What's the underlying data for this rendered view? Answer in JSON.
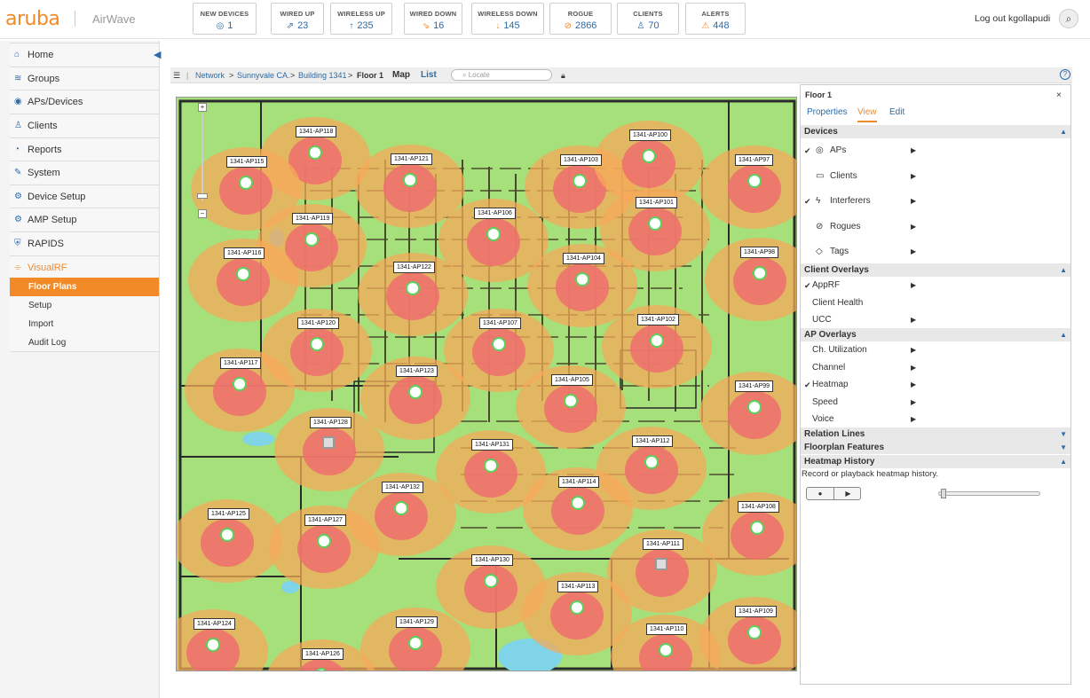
{
  "brand": {
    "logo": "aruba",
    "product": "AirWave",
    "accent": "#f28a28",
    "link": "#2d6aa6"
  },
  "stats": [
    {
      "label": "NEW DEVICES",
      "value": "1",
      "icon": "new-device-icon",
      "glyph": "◎"
    },
    {
      "label": "WIRED UP",
      "value": "23",
      "icon": "wired-up-icon",
      "glyph": "⇗"
    },
    {
      "label": "WIRELESS UP",
      "value": "235",
      "icon": "arrow-up-icon",
      "glyph": "↑"
    },
    {
      "label": "WIRED DOWN",
      "value": "16",
      "icon": "wired-down-icon",
      "glyph": "⇘"
    },
    {
      "label": "WIRELESS DOWN",
      "value": "145",
      "icon": "arrow-down-icon",
      "glyph": "↓"
    },
    {
      "label": "ROGUE",
      "value": "2866",
      "icon": "rogue-icon",
      "glyph": "⊘"
    },
    {
      "label": "CLIENTS",
      "value": "70",
      "icon": "user-icon",
      "glyph": "♙"
    },
    {
      "label": "ALERTS",
      "value": "448",
      "icon": "alert-icon",
      "glyph": "⚠"
    }
  ],
  "user": {
    "logout": "Log out kgollapudi"
  },
  "sidebar": {
    "items": [
      {
        "label": "Home",
        "icon": "home-icon",
        "glyph": "⌂"
      },
      {
        "label": "Groups",
        "icon": "wifi-icon",
        "glyph": "≋"
      },
      {
        "label": "APs/Devices",
        "icon": "eye-icon",
        "glyph": "◉"
      },
      {
        "label": "Clients",
        "icon": "users-icon",
        "glyph": "♙"
      },
      {
        "label": "Reports",
        "icon": "pie-chart-icon",
        "glyph": "◔"
      },
      {
        "label": "System",
        "icon": "wrench-icon",
        "glyph": "✎"
      },
      {
        "label": "Device Setup",
        "icon": "gear-icon",
        "glyph": "⚙"
      },
      {
        "label": "AMP Setup",
        "icon": "amp-icon",
        "glyph": "⚙"
      },
      {
        "label": "RAPIDS",
        "icon": "shield-icon",
        "glyph": "⛨"
      },
      {
        "label": "VisualRF",
        "icon": "visualrf-icon",
        "glyph": "⌯"
      }
    ],
    "subitems": [
      "Floor Plans",
      "Setup",
      "Import",
      "Audit Log"
    ]
  },
  "breadcrumb": [
    "Network",
    "Sunnyvale CA.",
    "Building 1341",
    "Floor 1"
  ],
  "toolbar": {
    "map": "Map",
    "list": "List",
    "locate_placeholder": "Locate"
  },
  "aps": [
    {
      "name": "1341-AP118",
      "status": "up"
    },
    {
      "name": "1341-AP115",
      "status": "up"
    },
    {
      "name": "1341-AP121",
      "status": "up"
    },
    {
      "name": "1341-AP103",
      "status": "up"
    },
    {
      "name": "1341-AP100",
      "status": "up"
    },
    {
      "name": "1341-AP97",
      "status": "up"
    },
    {
      "name": "1341-AP119",
      "status": "up"
    },
    {
      "name": "1341-AP106",
      "status": "up"
    },
    {
      "name": "1341-AP101",
      "status": "up"
    },
    {
      "name": "1341-AP116",
      "status": "up"
    },
    {
      "name": "1341-AP122",
      "status": "up"
    },
    {
      "name": "1341-AP104",
      "status": "up"
    },
    {
      "name": "1341-AP98",
      "status": "up"
    },
    {
      "name": "1341-AP120",
      "status": "up"
    },
    {
      "name": "1341-AP107",
      "status": "up"
    },
    {
      "name": "1341-AP102",
      "status": "up"
    },
    {
      "name": "1341-AP117",
      "status": "up"
    },
    {
      "name": "1341-AP123",
      "status": "up"
    },
    {
      "name": "1341-AP105",
      "status": "up"
    },
    {
      "name": "1341-AP99",
      "status": "up"
    },
    {
      "name": "1341-AP128",
      "status": "down"
    },
    {
      "name": "1341-AP131",
      "status": "up"
    },
    {
      "name": "1341-AP112",
      "status": "up"
    },
    {
      "name": "1341-AP132",
      "status": "up"
    },
    {
      "name": "1341-AP114",
      "status": "up"
    },
    {
      "name": "1341-AP125",
      "status": "up"
    },
    {
      "name": "1341-AP127",
      "status": "up"
    },
    {
      "name": "1341-AP108",
      "status": "up"
    },
    {
      "name": "1341-AP130",
      "status": "up"
    },
    {
      "name": "1341-AP111",
      "status": "down"
    },
    {
      "name": "1341-AP113",
      "status": "up"
    },
    {
      "name": "1341-AP124",
      "status": "up"
    },
    {
      "name": "1341-AP129",
      "status": "up"
    },
    {
      "name": "1341-AP109",
      "status": "up"
    },
    {
      "name": "1341-AP126",
      "status": "up"
    },
    {
      "name": "1341-AP110",
      "status": "up"
    }
  ],
  "panel": {
    "title": "Floor 1",
    "tabs": [
      "Properties",
      "View",
      "Edit"
    ],
    "devices_header": "Devices",
    "devices": [
      {
        "label": "APs",
        "checked": true,
        "icon": "ap-icon",
        "glyph": "◎"
      },
      {
        "label": "Clients",
        "checked": false,
        "icon": "monitor-icon",
        "glyph": "▭"
      },
      {
        "label": "Interferers",
        "checked": true,
        "icon": "lightning-icon",
        "glyph": "ϟ"
      },
      {
        "label": "Rogues",
        "checked": false,
        "icon": "rogue-icon",
        "glyph": "⊘"
      },
      {
        "label": "Tags",
        "checked": false,
        "icon": "tag-icon",
        "glyph": "◇"
      }
    ],
    "client_overlays_header": "Client Overlays",
    "client_overlays": [
      {
        "label": "AppRF",
        "checked": true,
        "arrow": true
      },
      {
        "label": "Client Health",
        "checked": false,
        "arrow": false
      },
      {
        "label": "UCC",
        "checked": false,
        "arrow": true
      }
    ],
    "ap_overlays_header": "AP Overlays",
    "ap_overlays": [
      {
        "label": "Ch. Utilization",
        "checked": false
      },
      {
        "label": "Channel",
        "checked": false
      },
      {
        "label": "Heatmap",
        "checked": true
      },
      {
        "label": "Speed",
        "checked": false
      },
      {
        "label": "Voice",
        "checked": false
      }
    ],
    "relation_lines": "Relation Lines",
    "floorplan_features": "Floorplan Features",
    "heatmap_history": "Heatmap History",
    "heatmap_hint": "Record or playback heatmap history.",
    "heatmap_progress": 0
  }
}
